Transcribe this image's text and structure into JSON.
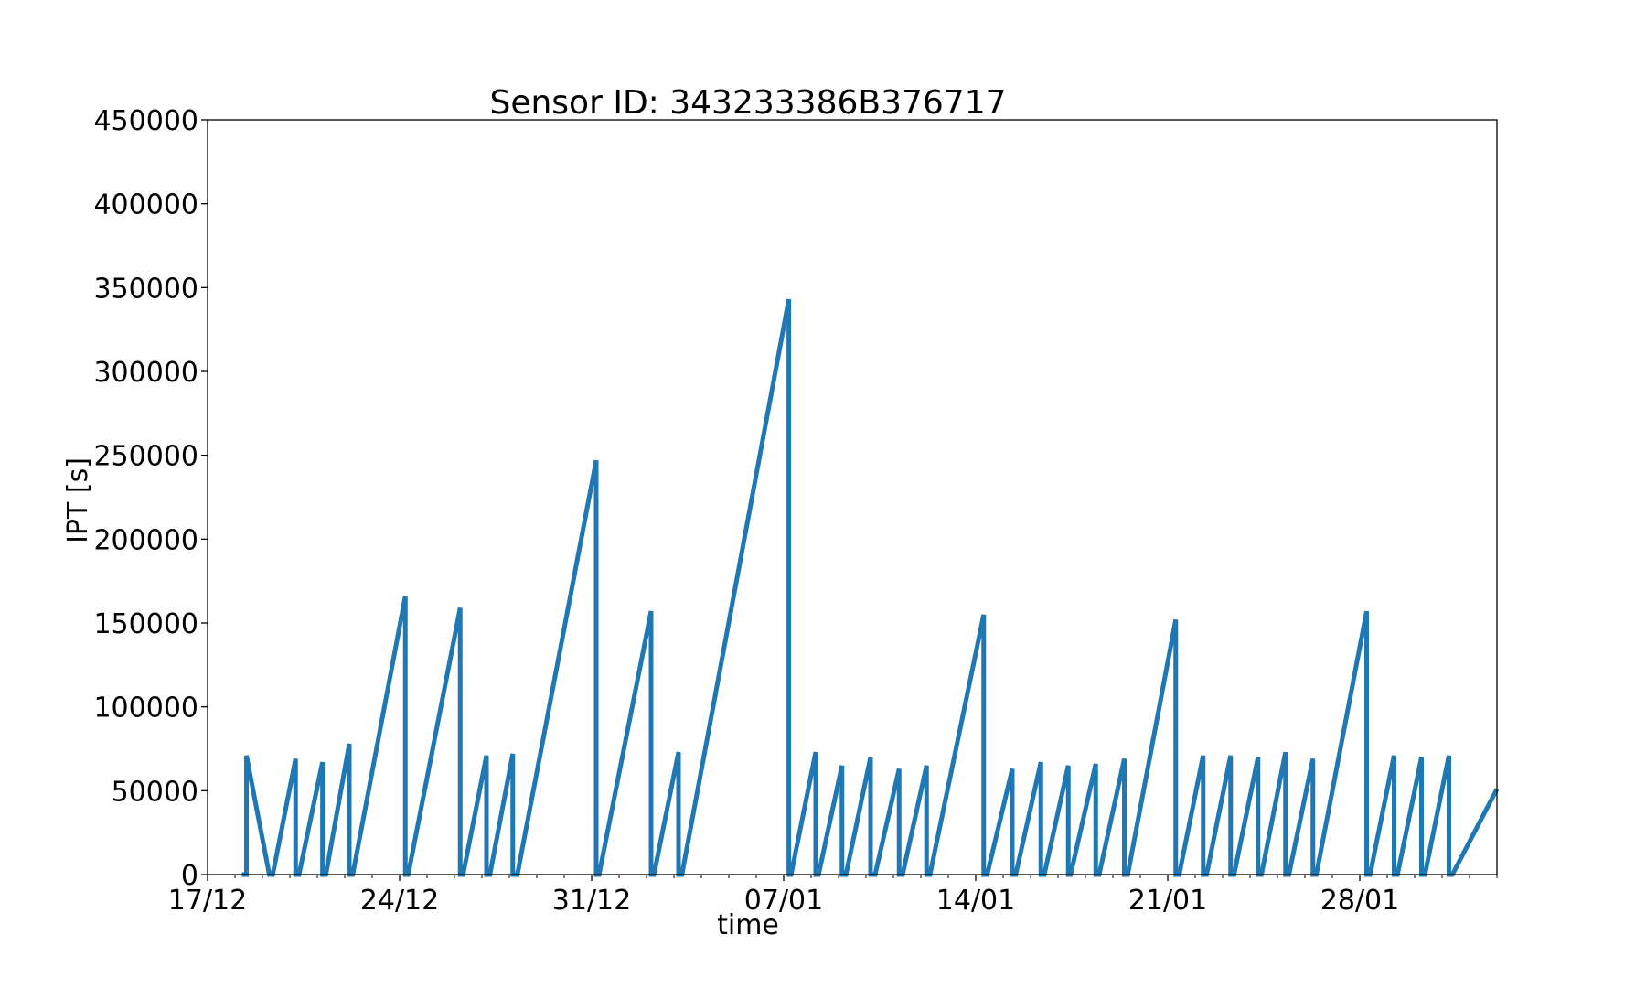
{
  "chart_data": {
    "type": "line",
    "title": "Sensor ID: 343233386B376717",
    "xlabel": "time",
    "ylabel": "IPT [s]",
    "ylim": [
      0,
      450000
    ],
    "yticks": [
      0,
      50000,
      100000,
      150000,
      200000,
      250000,
      300000,
      350000,
      400000,
      450000
    ],
    "xlim": [
      "17/12 00:00",
      "02/02 00:00"
    ],
    "xticks": [
      "17/12",
      "24/12",
      "31/12",
      "07/01",
      "14/01",
      "21/01",
      "28/01"
    ],
    "grid": false,
    "legend": "none",
    "color": "#1f77b4",
    "series": [
      {
        "x": [
          "18/12 06:00",
          "18/12 10:00",
          "18/12 10:00",
          "19/12 06:00",
          "19/12 06:00",
          "19/12 09:00",
          "20/12 05:00",
          "20/12 05:00",
          "20/12 08:00",
          "21/12 04:30",
          "21/12 04:30",
          "21/12 07:30",
          "22/12 04:00",
          "22/12 04:00",
          "22/12 07:00",
          "24/12 05:00",
          "24/12 05:00",
          "24/12 07:30",
          "26/12 05:00",
          "26/12 05:00",
          "26/12 07:30",
          "27/12 04:00",
          "27/12 04:00",
          "27/12 07:00",
          "28/12 03:00",
          "28/12 03:00",
          "28/12 07:00",
          "31/12 04:00",
          "31/12 04:00",
          "31/12 06:30",
          "02/01 04:00",
          "02/01 04:00",
          "02/01 06:30",
          "03/01 04:00",
          "03/01 04:00",
          "03/01 07:00",
          "07/01 04:30",
          "07/01 04:30",
          "07/01 06:30",
          "08/01 04:00",
          "08/01 04:00",
          "08/01 06:30",
          "09/01 03:00",
          "09/01 03:00",
          "09/01 06:30",
          "10/01 04:00",
          "10/01 04:00",
          "10/01 08:00",
          "11/01 05:00",
          "11/01 05:00",
          "11/01 08:00",
          "12/01 05:00",
          "12/01 05:00",
          "12/01 08:00",
          "14/01 07:00",
          "14/01 07:00",
          "14/01 10:00",
          "15/01 08:00",
          "15/01 08:00",
          "15/01 11:00",
          "16/01 09:00",
          "16/01 09:00",
          "16/01 12:00",
          "17/01 09:00",
          "17/01 09:00",
          "17/01 11:00",
          "18/01 09:00",
          "18/01 09:00",
          "18/01 12:00",
          "19/01 10:00",
          "19/01 10:00",
          "19/01 13:00",
          "21/01 07:00",
          "21/01 07:00",
          "21/01 10:00",
          "22/01 07:00",
          "22/01 07:00",
          "22/01 10:00",
          "23/01 07:00",
          "23/01 07:00",
          "23/01 10:00",
          "24/01 07:00",
          "24/01 07:00",
          "24/01 10:00",
          "25/01 07:00",
          "25/01 07:00",
          "25/01 10:00",
          "26/01 07:00",
          "26/01 07:00",
          "26/01 10:00",
          "28/01 06:00",
          "28/01 06:00",
          "28/01 09:00",
          "29/01 06:00",
          "29/01 06:00",
          "29/01 09:00",
          "30/01 06:00",
          "30/01 06:00",
          "30/01 09:00",
          "31/01 06:00",
          "31/01 06:00",
          "31/01 09:00",
          "02/02 00:00"
        ],
        "y": [
          0,
          0,
          71000,
          0,
          0,
          0,
          69000,
          0,
          0,
          67000,
          0,
          0,
          78000,
          0,
          0,
          166000,
          0,
          0,
          159000,
          0,
          0,
          71000,
          0,
          0,
          72000,
          0,
          0,
          247000,
          0,
          0,
          157000,
          0,
          0,
          73000,
          0,
          0,
          343000,
          0,
          0,
          73000,
          0,
          0,
          65000,
          0,
          0,
          70000,
          0,
          0,
          63000,
          0,
          0,
          65000,
          0,
          0,
          155000,
          0,
          0,
          63000,
          0,
          0,
          67000,
          0,
          0,
          65000,
          0,
          0,
          66000,
          0,
          0,
          69000,
          0,
          0,
          152000,
          0,
          0,
          71000,
          0,
          0,
          71000,
          0,
          0,
          70000,
          0,
          0,
          73000,
          0,
          0,
          69000,
          0,
          0,
          157000,
          0,
          0,
          71000,
          0,
          0,
          70000,
          0,
          0,
          71000,
          0,
          0,
          51000
        ]
      }
    ]
  }
}
